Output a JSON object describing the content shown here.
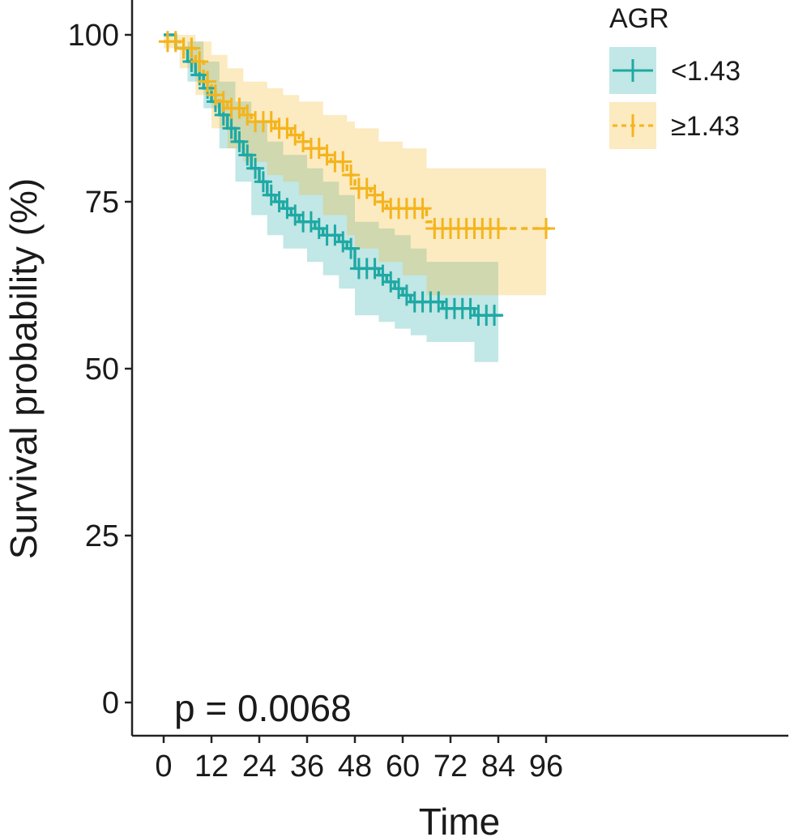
{
  "chart_data": {
    "type": "line",
    "subtype": "kaplan-meier survival curve with 95% confidence bands and censor marks",
    "xlabel": "Time",
    "ylabel": "Survival probability (%)",
    "xlim": [
      0,
      99
    ],
    "ylim": [
      0,
      100
    ],
    "xticks": [
      0,
      12,
      24,
      36,
      48,
      60,
      72,
      84,
      96
    ],
    "yticks": [
      0,
      25,
      50,
      75,
      100
    ],
    "grid": false,
    "annotation": "p = 0.0068",
    "legend": {
      "title": "AGR",
      "position": "top-right"
    },
    "series": [
      {
        "name": "<1.43",
        "color": "#1FA9A4",
        "line_style": "solid",
        "steps": [
          [
            0,
            100
          ],
          [
            3,
            98
          ],
          [
            6,
            96
          ],
          [
            8,
            94
          ],
          [
            10,
            92
          ],
          [
            12,
            90
          ],
          [
            14,
            88
          ],
          [
            16,
            86
          ],
          [
            18,
            84
          ],
          [
            20,
            82
          ],
          [
            22,
            80
          ],
          [
            24,
            78
          ],
          [
            26,
            76
          ],
          [
            28,
            75
          ],
          [
            30,
            74
          ],
          [
            32,
            73
          ],
          [
            34,
            72
          ],
          [
            38,
            71
          ],
          [
            40,
            70
          ],
          [
            44,
            69
          ],
          [
            46,
            68
          ],
          [
            48,
            65
          ],
          [
            54,
            64
          ],
          [
            56,
            63
          ],
          [
            58,
            62
          ],
          [
            60,
            61
          ],
          [
            62,
            60
          ],
          [
            70,
            59
          ],
          [
            78,
            58
          ],
          [
            85,
            58
          ]
        ],
        "ci_steps": [
          [
            0,
            100,
            100
          ],
          [
            6,
            99,
            93
          ],
          [
            10,
            96,
            89
          ],
          [
            14,
            93,
            83
          ],
          [
            18,
            90,
            78
          ],
          [
            22,
            87,
            73
          ],
          [
            26,
            84,
            70
          ],
          [
            30,
            82,
            68
          ],
          [
            36,
            80,
            66
          ],
          [
            40,
            78,
            64
          ],
          [
            44,
            76,
            62
          ],
          [
            48,
            72,
            58
          ],
          [
            54,
            71,
            57
          ],
          [
            58,
            70,
            56
          ],
          [
            62,
            68,
            55
          ],
          [
            66,
            66,
            54
          ],
          [
            70,
            66,
            54
          ],
          [
            78,
            66,
            51
          ],
          [
            84,
            66,
            51
          ]
        ],
        "censor_times": [
          5,
          7,
          9,
          11,
          13,
          15,
          17,
          19,
          21,
          23,
          25,
          27,
          29,
          31,
          33,
          35,
          37,
          39,
          41,
          43,
          45,
          47,
          49,
          51,
          53,
          55,
          57,
          59,
          61,
          63,
          65,
          67,
          69,
          71,
          73,
          75,
          77,
          79,
          81,
          83
        ]
      },
      {
        "name": "≥1.43",
        "color": "#F4B41C",
        "line_style": "dashed",
        "steps": [
          [
            0,
            99
          ],
          [
            4,
            98
          ],
          [
            8,
            96
          ],
          [
            10,
            93
          ],
          [
            12,
            91
          ],
          [
            14,
            90
          ],
          [
            16,
            89
          ],
          [
            20,
            88
          ],
          [
            22,
            87
          ],
          [
            28,
            86
          ],
          [
            32,
            85
          ],
          [
            34,
            84
          ],
          [
            36,
            83
          ],
          [
            40,
            82
          ],
          [
            42,
            81
          ],
          [
            46,
            79
          ],
          [
            48,
            77
          ],
          [
            52,
            76
          ],
          [
            54,
            75
          ],
          [
            56,
            74
          ],
          [
            66,
            72
          ],
          [
            68,
            71
          ],
          [
            97,
            71
          ]
        ],
        "ci_steps": [
          [
            0,
            100,
            98
          ],
          [
            4,
            100,
            95
          ],
          [
            8,
            99,
            91
          ],
          [
            12,
            97,
            86
          ],
          [
            16,
            95,
            83
          ],
          [
            20,
            93,
            81
          ],
          [
            26,
            92,
            79
          ],
          [
            30,
            91,
            78
          ],
          [
            34,
            90,
            76
          ],
          [
            40,
            88,
            73
          ],
          [
            46,
            87,
            70
          ],
          [
            48,
            86,
            68
          ],
          [
            54,
            84,
            66
          ],
          [
            60,
            83,
            64
          ],
          [
            66,
            80,
            61
          ],
          [
            96,
            80,
            61
          ]
        ],
        "censor_times": [
          1,
          3,
          5,
          7,
          9,
          11,
          13,
          15,
          17,
          19,
          21,
          23,
          25,
          27,
          29,
          31,
          33,
          35,
          37,
          39,
          41,
          43,
          45,
          47,
          49,
          51,
          53,
          55,
          57,
          59,
          61,
          63,
          65,
          68,
          70,
          72,
          74,
          76,
          78,
          80,
          82,
          84,
          96
        ]
      }
    ]
  }
}
